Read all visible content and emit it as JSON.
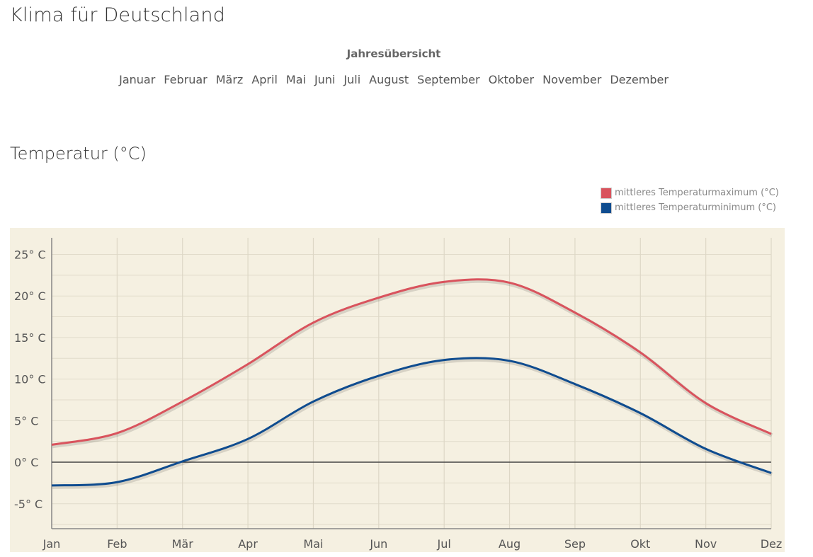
{
  "page": {
    "title": "Klima für Deutschland",
    "year_overview": "Jahresübersicht",
    "months": [
      "Januar",
      "Februar",
      "März",
      "April",
      "Mai",
      "Juni",
      "Juli",
      "August",
      "September",
      "Oktober",
      "November",
      "Dezember"
    ],
    "section_title": "Temperatur (°C)"
  },
  "chart_data": {
    "type": "line",
    "categories": [
      "Jan",
      "Feb",
      "Mär",
      "Apr",
      "Mai",
      "Jun",
      "Jul",
      "Aug",
      "Sep",
      "Okt",
      "Nov",
      "Dez"
    ],
    "series": [
      {
        "name": "mittleres Temperaturmaximum (°C)",
        "color": "#d9535d",
        "values": [
          2.1,
          3.5,
          7.3,
          11.8,
          16.8,
          19.8,
          21.7,
          21.6,
          18.0,
          13.2,
          7.1,
          3.4
        ]
      },
      {
        "name": "mittleres Temperaturminimum (°C)",
        "color": "#0f4c8f",
        "values": [
          -2.8,
          -2.4,
          0.1,
          2.8,
          7.3,
          10.4,
          12.3,
          12.2,
          9.4,
          5.9,
          1.6,
          -1.3
        ]
      }
    ],
    "y_ticks": [
      "25° C",
      "20° C",
      "15° C",
      "10° C",
      "5° C",
      "0° C",
      "-5° C"
    ],
    "y_tick_values": [
      25,
      20,
      15,
      10,
      5,
      0,
      -5
    ],
    "ylim": [
      -8,
      27
    ],
    "grid": true,
    "zero_line": true,
    "legend_position": "top-right",
    "background": "#f5f0e1",
    "grid_color": "#e2dccb"
  }
}
